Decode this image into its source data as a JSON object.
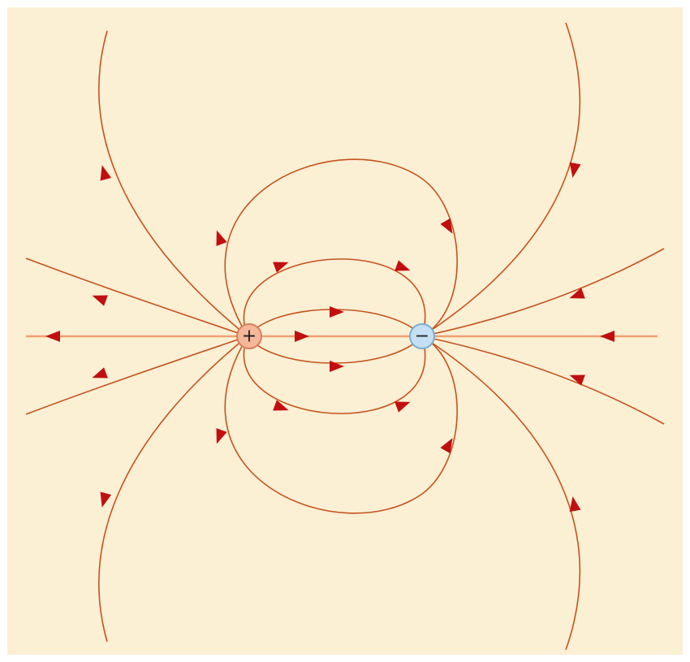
{
  "diagram": {
    "colors": {
      "background": "#fbefd4",
      "field_line": "#c4541e",
      "axis_line": "#f0a070",
      "arrow": "#c10f0f",
      "positive_fill": "#f4b898",
      "positive_stroke": "#d48060",
      "negative_fill": "#c5e0f4",
      "negative_stroke": "#7aaed4",
      "sign_text": "#222222"
    },
    "charges": [
      {
        "name": "positive-charge",
        "sign": "+"
      },
      {
        "name": "negative-charge",
        "sign": "−"
      }
    ]
  }
}
